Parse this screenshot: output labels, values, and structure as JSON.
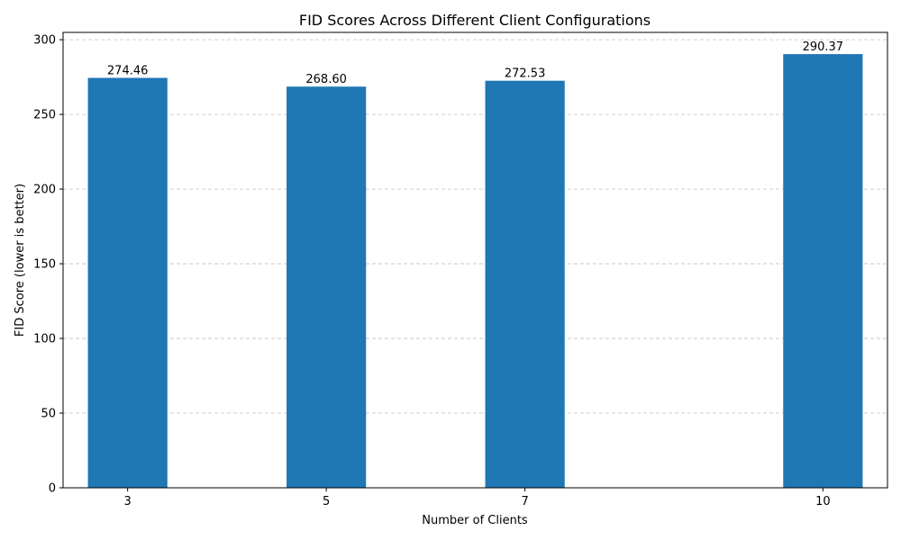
{
  "chart_data": {
    "type": "bar",
    "title": "FID Scores Across Different Client Configurations",
    "xlabel": "Number of Clients",
    "ylabel": "FID Score (lower is better)",
    "x": [
      3,
      5,
      7,
      10
    ],
    "categories": [
      "3",
      "5",
      "7",
      "10"
    ],
    "values": [
      274.46,
      268.6,
      272.53,
      290.37
    ],
    "value_labels": [
      "274.46",
      "268.60",
      "272.53",
      "290.37"
    ],
    "xlim": [
      2.35,
      10.65
    ],
    "ylim": [
      0,
      304.9
    ],
    "yticks": [
      0,
      50,
      100,
      150,
      200,
      250,
      300
    ],
    "ytick_labels": [
      "0",
      "50",
      "100",
      "150",
      "200",
      "250",
      "300"
    ],
    "grid": "y-major, dashed",
    "bar_width": 0.8,
    "legend": "none"
  },
  "colors": {
    "bar": "#1f77b4",
    "grid": "#c0c0c0",
    "axis": "#000000",
    "background": "#ffffff"
  }
}
